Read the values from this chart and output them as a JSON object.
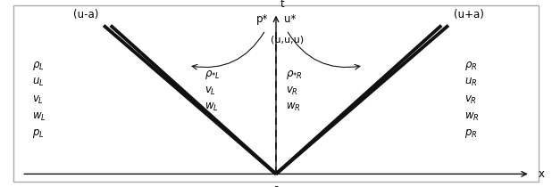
{
  "fig_width": 6.18,
  "fig_height": 2.1,
  "dpi": 100,
  "bg_color": "#ffffff",
  "border_color": "#aaaaaa",
  "xlim": [
    -5,
    5
  ],
  "ylim": [
    -0.3,
    5.5
  ],
  "ox": 0.0,
  "oy": 0.0,
  "x_end": 4.8,
  "t_end": 5.2,
  "left_shock_x2": -3.2,
  "left_shock_y2": 4.8,
  "right_shock_x2": 3.2,
  "right_shock_y2": 4.8,
  "left_inner_x2": -2.7,
  "left_inner_y2": 4.8,
  "right_inner_x2": 2.7,
  "right_inner_y2": 4.8,
  "contact_y2": 4.6,
  "label_ua": "(u-a)",
  "label_upa": "(u+a)",
  "label_ps": "p*",
  "label_us": "u*",
  "label_uuu": "(u,u,u)",
  "label_rhoStarL": "ρ*L",
  "label_vStarL": "vL",
  "label_wStarL": "wL",
  "label_rhoStarR": "ρ*R",
  "label_vStarR": "vR",
  "label_wStarR": "wR",
  "left_labels": [
    "ρL",
    "uL",
    "vL",
    "wL",
    "pL"
  ],
  "right_labels": [
    "ρR",
    "uR",
    "vR",
    "wR",
    "pR"
  ],
  "fontsize": 8.5,
  "linewidth_shock": 2.8,
  "linewidth_contact": 1.1,
  "linecolor": "#111111",
  "arrow_color": "#333333"
}
